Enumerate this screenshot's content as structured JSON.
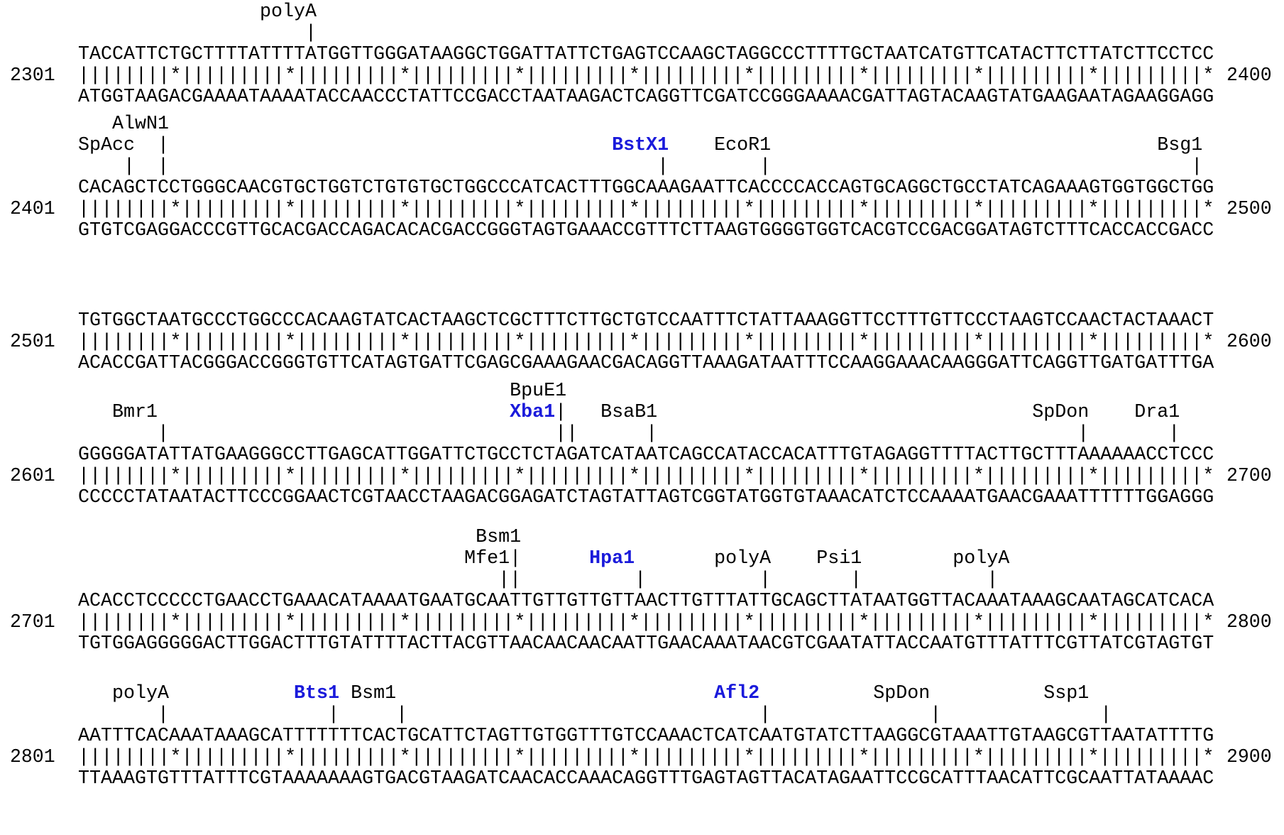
{
  "blocks": [
    {
      "start": "2301",
      "end": "2400",
      "annot": [
        "                polyA",
        "                    |"
      ],
      "highlight": [],
      "top": "TACCATTCTGCTTTTATTTTATGGTTGGGATAAGGCTGGATTATTCTGAGTCCAAGCTAGGCCCTTTTGCTAATCATGTTCATACTTCTTATCTTCCTCC",
      "match": "||||||||*|||||||||*|||||||||*|||||||||*|||||||||*|||||||||*|||||||||*|||||||||*|||||||||*|||||||||*",
      "bottom": "ATGGTAAGACGAAAATAAAATACCAACCCTATTCCGACCTAATAAGACTCAGGTTCGATCCGGGAAAACGATTAGTACAAGTATGAAGAATAGAAGGAGG"
    },
    {
      "start": "2401",
      "end": "2500",
      "annot": [
        "   AlwN1",
        "SpAcc  |                                       BstX1    EcoR1                                  Bsg1",
        "    |  |                                           |        |                                     |"
      ],
      "highlight": [
        "BstX1"
      ],
      "top": "CACAGCTCCTGGGCAACGTGCTGGTCTGTGTGCTGGCCCATCACTTTGGCAAAGAATTCACCCCACCAGTGCAGGCTGCCTATCAGAAAGTGGTGGCTGG",
      "match": "||||||||*|||||||||*|||||||||*|||||||||*|||||||||*|||||||||*|||||||||*|||||||||*|||||||||*|||||||||*",
      "bottom": "GTGTCGAGGACCCGTTGCACGACCAGACACACGACCGGGTAGTGAAACCGTTTCTTAAGTGGGGTGGTCACGTCCGACGGATAGTCTTTCACCACCGACC"
    },
    {
      "start": "2501",
      "end": "2600",
      "annot": [],
      "highlight": [],
      "top": "TGTGGCTAATGCCCTGGCCCACAAGTATCACTAAGCTCGCTTTCTTGCTGTCCAATTTCTATTAAAGGTTCCTTTGTTCCCTAAGTCCAACTACTAAACT",
      "match": "||||||||*|||||||||*|||||||||*|||||||||*|||||||||*|||||||||*|||||||||*|||||||||*|||||||||*|||||||||*",
      "bottom": "ACACCGATTACGGGACCGGGTGTTCATAGTGATTCGAGCGAAAGAACGACAGGTTAAAGATAATTTCCAAGGAAACAAGGGATTCAGGTTGATGATTTGA"
    },
    {
      "start": "2601",
      "end": "2700",
      "annot": [
        "                                      BpuE1",
        "   Bmr1                               Xba1|   BsaB1                                 SpDon    Dra1",
        "       |                                  ||      |                                     |       |"
      ],
      "highlight": [
        "Xba1"
      ],
      "top": "GGGGGATATTATGAAGGGCCTTGAGCATTGGATTCTGCCTCTAGATCATAATCAGCCATACCACATTTGTAGAGGTTTTACTTGCTTTAAAAAACCTCCC",
      "match": "||||||||*|||||||||*|||||||||*|||||||||*|||||||||*|||||||||*|||||||||*|||||||||*|||||||||*|||||||||*",
      "bottom": "CCCCCTATAATACTTCCCGGAACTCGTAACCTAAGACGGAGATCTAGTATTAGTCGGTATGGTGTAAACATCTCCAAAATGAACGAAATTTTTTGGAGGG"
    },
    {
      "start": "2701",
      "end": "2800",
      "annot": [
        "                                   Bsm1",
        "                                  Mfe1|      Hpa1       polyA    Psi1        polyA",
        "                                     ||          |          |       |           |"
      ],
      "highlight": [
        "Hpa1"
      ],
      "top": "ACACCTCCCCCTGAACCTGAAACATAAAATGAATGCAATTGTTGTTGTTAACTTGTTTATTGCAGCTTATAATGGTTACAAATAAAGCAATAGCATCACA",
      "match": "||||||||*|||||||||*|||||||||*|||||||||*|||||||||*|||||||||*|||||||||*|||||||||*|||||||||*|||||||||*",
      "bottom": "TGTGGAGGGGGACTTGGACTTTGTATTTTACTTACGTTAACAACAACAATTGAACAAATAACGTCGAATATTACCAATGTTTATTTCGTTATCGTAGTGT"
    },
    {
      "start": "2801",
      "end": "2900",
      "annot": [
        "   polyA           Bts1 Bsm1                            Afl2          SpDon          Ssp1",
        "       |              |     |                               |              |              |"
      ],
      "highlight": [
        "Bts1",
        "Afl2"
      ],
      "top": "AATTTCACAAATAAAGCATTTTTTTCACTGCATTCTAGTTGTGGTTTGTCCAAACTCATCAATGTATCTTAAGGCGTAAATTGTAAGCGTTAATATTTTG",
      "match": "||||||||*|||||||||*|||||||||*|||||||||*|||||||||*|||||||||*|||||||||*|||||||||*|||||||||*|||||||||*",
      "bottom": "TTAAAGTGTTTATTTCGTAAAAAAAGTGACGTAAGATCAACACCAAACAGGTTTGAGTAGTTACATAGAATTCCGCATTTAACATTCGCAATTATAAAAC"
    }
  ]
}
